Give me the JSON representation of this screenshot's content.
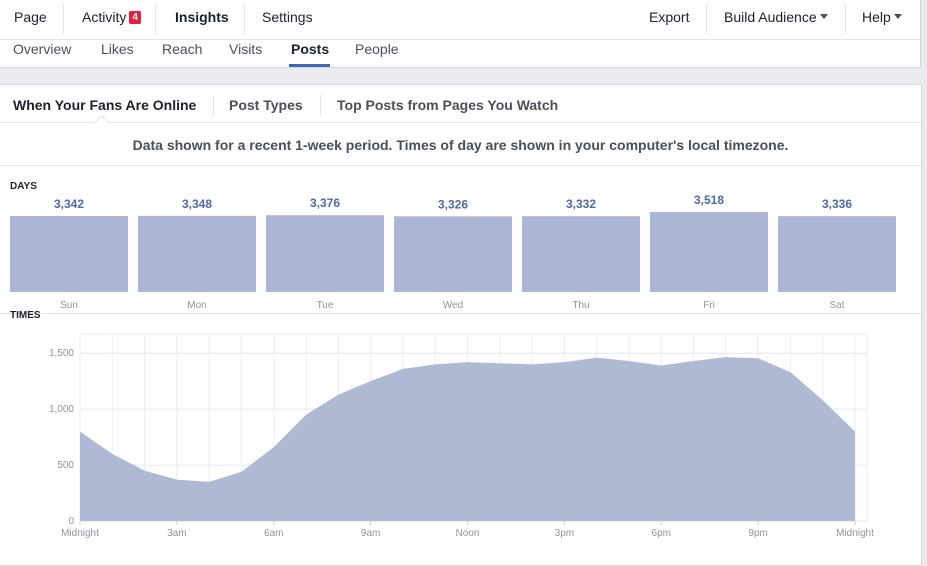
{
  "nav": {
    "left": [
      "Page",
      "Activity",
      "Insights",
      "Settings"
    ],
    "badge": 4,
    "right": [
      "Export",
      "Build Audience",
      "Help"
    ]
  },
  "subnav": [
    "Overview",
    "Likes",
    "Reach",
    "Visits",
    "Posts",
    "People"
  ],
  "tabs": [
    "When Your Fans Are Online",
    "Post Types",
    "Top Posts from Pages You Watch"
  ],
  "notice": "Data shown for a recent 1-week period. Times of day are shown in your computer's local timezone.",
  "chart_data": [
    {
      "type": "bar",
      "title": "DAYS",
      "categories": [
        "Sun",
        "Mon",
        "Tue",
        "Wed",
        "Thu",
        "Fri",
        "Sat"
      ],
      "values": [
        3342,
        3348,
        3376,
        3326,
        3332,
        3518,
        3336
      ],
      "value_labels": [
        "3,342",
        "3,348",
        "3,376",
        "3,326",
        "3,332",
        "3,518",
        "3,336"
      ],
      "color": "#aab6d3"
    },
    {
      "type": "area",
      "title": "TIMES",
      "x": [
        0,
        1,
        2,
        3,
        4,
        5,
        6,
        7,
        8,
        9,
        10,
        11,
        12,
        13,
        14,
        15,
        16,
        17,
        18,
        19,
        20,
        21,
        22,
        23,
        24
      ],
      "values": [
        800,
        600,
        450,
        370,
        350,
        440,
        660,
        950,
        1130,
        1250,
        1360,
        1400,
        1420,
        1410,
        1400,
        1420,
        1460,
        1430,
        1390,
        1430,
        1465,
        1455,
        1330,
        1080,
        800
      ],
      "xlim": [
        0,
        24
      ],
      "xticks": [
        {
          "value": 0,
          "label": "Midnight"
        },
        {
          "value": 3,
          "label": "3am"
        },
        {
          "value": 6,
          "label": "6am"
        },
        {
          "value": 9,
          "label": "9am"
        },
        {
          "value": 12,
          "label": "Noon"
        },
        {
          "value": 15,
          "label": "3pm"
        },
        {
          "value": 18,
          "label": "6pm"
        },
        {
          "value": 21,
          "label": "9pm"
        },
        {
          "value": 24,
          "label": "Midnight"
        }
      ],
      "ylim": [
        0,
        1600
      ],
      "yticks": [
        0,
        500,
        {
          "value": 1000,
          "label": "1,000"
        },
        {
          "value": 1500,
          "label": "1,500"
        }
      ],
      "color": "#aeb9d4",
      "grid": true
    }
  ]
}
